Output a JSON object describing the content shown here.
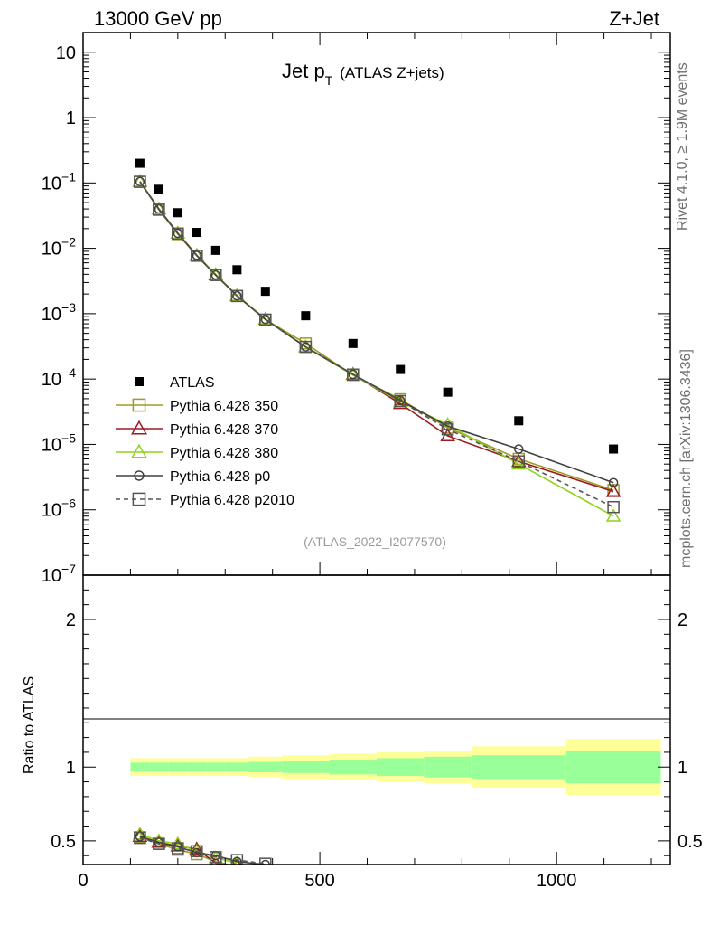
{
  "chart_data": {
    "type": "scatter",
    "header_left": "13000 GeV pp",
    "header_right": "Z+Jet",
    "title": "Jet p",
    "title_sub": "T",
    "title_suffix": "(ATLAS Z+jets)",
    "analysis_id": "(ATLAS_2022_I2077570)",
    "side_label_top": "Rivet 4.1.0, ≥ 1.9M events",
    "side_label_bottom": "mcplots.cern.ch [arXiv:1306.3436]",
    "ratio_ylabel": "Ratio to ATLAS",
    "xlim": [
      0,
      1240
    ],
    "ylim_log": [
      1e-07,
      20
    ],
    "ratio_ylim": [
      0.34,
      2.3
    ],
    "x_ticks": [
      {
        "v": 0,
        "label": "0"
      },
      {
        "v": 500,
        "label": "500"
      },
      {
        "v": 1000,
        "label": "1000"
      }
    ],
    "y_ticks": [
      {
        "exp": 1,
        "label": "10"
      },
      {
        "exp": 0,
        "label": "1"
      },
      {
        "exp": -1,
        "base": "10",
        "sup": "−1"
      },
      {
        "exp": -2,
        "base": "10",
        "sup": "−2"
      },
      {
        "exp": -3,
        "base": "10",
        "sup": "−3"
      },
      {
        "exp": -4,
        "base": "10",
        "sup": "−4"
      },
      {
        "exp": -5,
        "base": "10",
        "sup": "−5"
      },
      {
        "exp": -6,
        "base": "10",
        "sup": "−6"
      },
      {
        "exp": -7,
        "base": "10",
        "sup": "−7"
      }
    ],
    "ratio_ticks": [
      {
        "v": 0.5,
        "label": "0.5"
      },
      {
        "v": 1,
        "label": "1"
      },
      {
        "v": 2,
        "label": "2"
      }
    ],
    "bins": [
      [
        100,
        140
      ],
      [
        140,
        180
      ],
      [
        180,
        220
      ],
      [
        220,
        260
      ],
      [
        260,
        300
      ],
      [
        300,
        350
      ],
      [
        350,
        420
      ],
      [
        420,
        520
      ],
      [
        520,
        620
      ],
      [
        620,
        720
      ],
      [
        720,
        820
      ],
      [
        820,
        1020
      ],
      [
        1020,
        1220
      ]
    ],
    "data_x": [
      120,
      160,
      200,
      240,
      280,
      325,
      385,
      470,
      570,
      670,
      770,
      920,
      1120
    ],
    "atlas": [
      0.2,
      0.08,
      0.035,
      0.0175,
      0.0093,
      0.0047,
      0.0022,
      0.00093,
      0.00035,
      0.00014,
      6.3e-05,
      2.3e-05,
      8.5e-06
    ],
    "band_inner": [
      0.03,
      0.03,
      0.03,
      0.03,
      0.03,
      0.03,
      0.035,
      0.04,
      0.05,
      0.06,
      0.07,
      0.08,
      0.11
    ],
    "band_outer": [
      0.06,
      0.06,
      0.06,
      0.06,
      0.06,
      0.06,
      0.07,
      0.08,
      0.09,
      0.1,
      0.11,
      0.14,
      0.19
    ],
    "legend": [
      {
        "name": "ATLAS"
      },
      {
        "name": "Pythia 6.428 350"
      },
      {
        "name": "Pythia 6.428 370"
      },
      {
        "name": "Pythia 6.428 380"
      },
      {
        "name": "Pythia 6.428 p0"
      },
      {
        "name": "Pythia 6.428 p2010"
      }
    ],
    "series": [
      {
        "name": "Pythia 6.428 350",
        "color": "#a09a28",
        "marker": "square-open",
        "dash": false,
        "values": [
          0.104,
          0.039,
          0.0165,
          0.0077,
          0.0039,
          0.00187,
          0.00081,
          0.00035,
          0.000115,
          4.9e-05,
          1.8e-05,
          6e-06,
          2e-06
        ]
      },
      {
        "name": "Pythia 6.428 370",
        "color": "#9b1b22",
        "marker": "triangle-open",
        "dash": false,
        "values": [
          0.105,
          0.04,
          0.017,
          0.0078,
          0.0039,
          0.00188,
          0.00082,
          0.00031,
          0.000118,
          4.2e-05,
          1.35e-05,
          5.5e-06,
          1.9e-06
        ]
      },
      {
        "name": "Pythia 6.428 380",
        "color": "#8fd11c",
        "marker": "triangle-open",
        "dash": false,
        "values": [
          0.106,
          0.04,
          0.017,
          0.0079,
          0.004,
          0.0019,
          0.00083,
          0.00031,
          0.000115,
          4.5e-05,
          2e-05,
          5e-06,
          8e-07
        ]
      },
      {
        "name": "Pythia 6.428 p0",
        "color": "#404040",
        "marker": "circle-open",
        "dash": false,
        "values": [
          0.105,
          0.04,
          0.017,
          0.0078,
          0.0039,
          0.00188,
          0.00082,
          0.00031,
          0.000118,
          4.7e-05,
          1.9e-05,
          8.5e-06,
          2.6e-06
        ]
      },
      {
        "name": "Pythia 6.428 p2010",
        "color": "#555555",
        "marker": "square-open",
        "dash": true,
        "values": [
          0.104,
          0.039,
          0.0168,
          0.0077,
          0.0039,
          0.00186,
          0.00081,
          0.00031,
          0.000117,
          4.6e-05,
          1.7e-05,
          5.5e-06,
          1.1e-06
        ]
      }
    ],
    "ratio": {
      "x": [
        120,
        160,
        200,
        240,
        280,
        325,
        385
      ],
      "series": [
        {
          "name": "Pythia 6.428 350",
          "values": [
            0.525,
            0.48,
            0.44,
            0.41,
            0.36,
            0.325,
            null
          ]
        },
        {
          "name": "Pythia 6.428 370",
          "values": [
            0.53,
            0.49,
            0.465,
            0.445,
            0.35,
            0.33,
            null
          ]
        },
        {
          "name": "Pythia 6.428 380",
          "values": [
            0.545,
            0.5,
            0.48,
            0.43,
            0.385,
            0.35,
            null
          ]
        },
        {
          "name": "Pythia 6.428 p0",
          "values": [
            0.53,
            0.49,
            0.46,
            0.42,
            0.4,
            0.36,
            0.34
          ]
        },
        {
          "name": "Pythia 6.428 p2010",
          "values": [
            0.52,
            0.48,
            0.45,
            0.43,
            0.39,
            0.37,
            0.345
          ]
        }
      ]
    }
  }
}
